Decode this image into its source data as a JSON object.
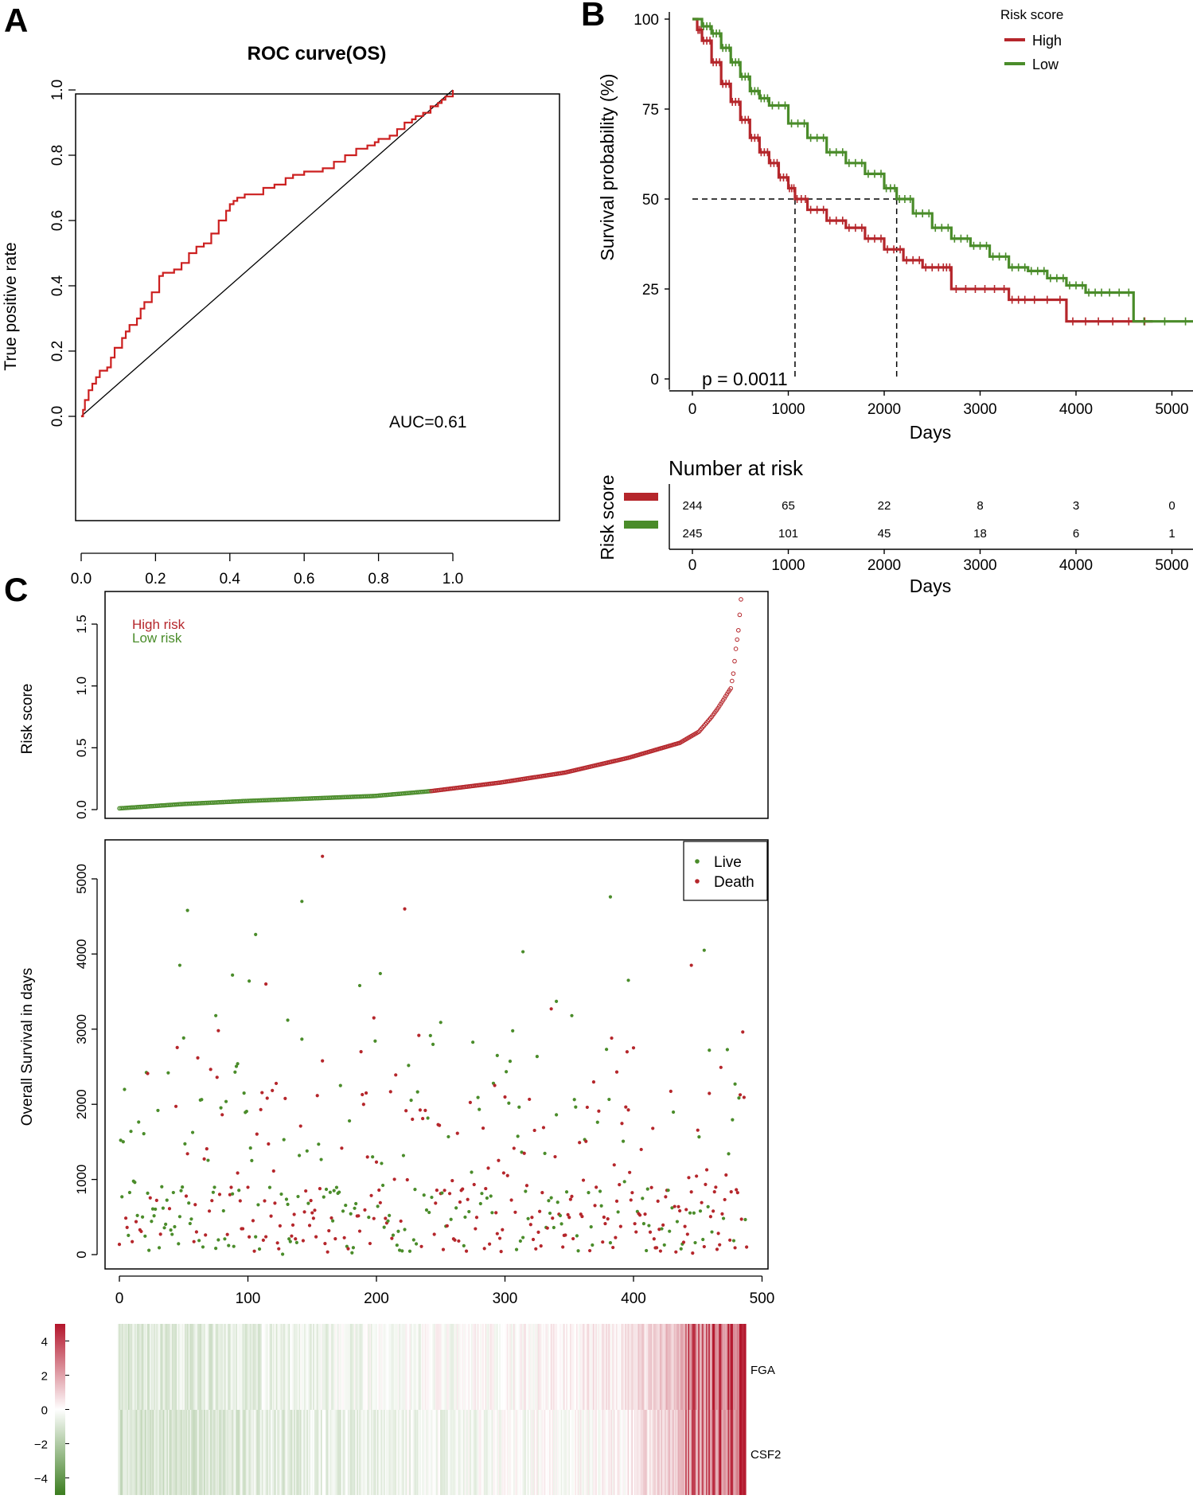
{
  "panel_labels": [
    "A",
    "B",
    "C"
  ],
  "chart_data": [
    {
      "id": "A",
      "type": "line",
      "title": "ROC curve(OS)",
      "xlabel": "",
      "ylabel": "True positive rate",
      "xlim": [
        0,
        1
      ],
      "ylim": [
        0,
        1
      ],
      "xticks": [
        "0.0",
        "0.2",
        "0.4",
        "0.6",
        "0.8",
        "1.0"
      ],
      "yticks": [
        "0.0",
        "0.2",
        "0.4",
        "0.6",
        "0.8",
        "1.0"
      ],
      "annotation": "AUC=0.61",
      "diagonal": true,
      "series": [
        {
          "name": "ROC",
          "color": "#cc1f1f",
          "x": [
            0,
            0.005,
            0.01,
            0.02,
            0.03,
            0.04,
            0.05,
            0.07,
            0.08,
            0.09,
            0.11,
            0.12,
            0.13,
            0.15,
            0.16,
            0.17,
            0.19,
            0.21,
            0.22,
            0.25,
            0.27,
            0.29,
            0.31,
            0.33,
            0.35,
            0.37,
            0.39,
            0.4,
            0.41,
            0.42,
            0.44,
            0.46,
            0.49,
            0.52,
            0.55,
            0.57,
            0.6,
            0.62,
            0.65,
            0.68,
            0.71,
            0.74,
            0.77,
            0.79,
            0.8,
            0.83,
            0.85,
            0.87,
            0.89,
            0.9,
            0.92,
            0.94,
            0.96,
            0.97,
            0.98,
            1.0
          ],
          "y": [
            0,
            0.02,
            0.05,
            0.08,
            0.1,
            0.12,
            0.14,
            0.15,
            0.18,
            0.21,
            0.24,
            0.26,
            0.28,
            0.3,
            0.33,
            0.35,
            0.38,
            0.43,
            0.44,
            0.45,
            0.47,
            0.5,
            0.52,
            0.53,
            0.56,
            0.6,
            0.63,
            0.65,
            0.66,
            0.67,
            0.68,
            0.68,
            0.7,
            0.71,
            0.73,
            0.74,
            0.75,
            0.75,
            0.76,
            0.78,
            0.8,
            0.82,
            0.83,
            0.84,
            0.85,
            0.86,
            0.88,
            0.9,
            0.91,
            0.92,
            0.93,
            0.95,
            0.96,
            0.97,
            0.98,
            1.0
          ]
        }
      ]
    },
    {
      "id": "B",
      "type": "line",
      "title": "",
      "xlabel": "Days",
      "ylabel": "Survival probability (%)",
      "xlim": [
        -200,
        5250
      ],
      "ylim": [
        -3,
        102
      ],
      "xticks": [
        0,
        1000,
        2000,
        3000,
        4000,
        5000
      ],
      "yticks": [
        0,
        25,
        50,
        75,
        100
      ],
      "legend_title": "Risk score",
      "annotation": "p = 0.0011",
      "median_reference": {
        "level": 50,
        "high_days": 1070,
        "low_days": 2130
      },
      "series": [
        {
          "name": "High",
          "color": "#b5262b",
          "x": [
            0,
            50,
            100,
            200,
            300,
            400,
            500,
            600,
            700,
            800,
            900,
            1000,
            1070,
            1200,
            1400,
            1600,
            1800,
            2000,
            2200,
            2400,
            2600,
            2700,
            3000,
            3300,
            3500,
            3900,
            4300,
            4800
          ],
          "y": [
            100,
            97,
            94,
            88,
            82,
            77,
            72,
            67,
            63,
            60,
            56,
            53,
            50,
            47,
            44,
            42,
            39,
            36,
            33,
            31,
            31,
            25,
            25,
            22,
            22,
            16,
            16,
            16
          ]
        },
        {
          "name": "Low",
          "color": "#4a8c2a",
          "x": [
            0,
            100,
            200,
            300,
            400,
            500,
            600,
            700,
            800,
            1000,
            1200,
            1400,
            1600,
            1800,
            2000,
            2130,
            2300,
            2500,
            2700,
            2900,
            3100,
            3300,
            3500,
            3700,
            3900,
            4100,
            4300,
            4600,
            5250
          ],
          "y": [
            100,
            98,
            96,
            92,
            88,
            84,
            80,
            78,
            76,
            71,
            67,
            63,
            60,
            57,
            53,
            50,
            46,
            42,
            39,
            37,
            34,
            31,
            30,
            28,
            26,
            24,
            24,
            16,
            16
          ]
        }
      ]
    },
    {
      "id": "B-risk-table",
      "type": "table",
      "title": "Number at risk",
      "ylabel": "Risk score",
      "xlabel": "Days",
      "xticks": [
        0,
        1000,
        2000,
        3000,
        4000,
        5000
      ],
      "rows": [
        {
          "name": "High",
          "color": "#b5262b",
          "values": [
            244,
            65,
            22,
            8,
            3,
            0
          ]
        },
        {
          "name": "Low",
          "color": "#4a8c2a",
          "values": [
            245,
            101,
            45,
            18,
            6,
            1
          ]
        }
      ]
    },
    {
      "id": "C-risk",
      "type": "scatter",
      "xlabel": "",
      "ylabel": "Risk score",
      "xlim": [
        0,
        489
      ],
      "ylim": [
        0,
        1.7
      ],
      "yticks": [
        "0.0",
        "0.5",
        "1.0",
        "1.5"
      ],
      "n_points": 489,
      "cutoff_index": 245,
      "legend": [
        {
          "name": "High risk",
          "color": "#b5262b"
        },
        {
          "name": "Low risk",
          "color": "#4a8c2a"
        }
      ],
      "curve_x": [
        0,
        50,
        100,
        150,
        200,
        245,
        300,
        350,
        400,
        420,
        440,
        455,
        465,
        470,
        475,
        478,
        480,
        482,
        484,
        486,
        488
      ],
      "curve_y": [
        0.01,
        0.045,
        0.07,
        0.09,
        0.11,
        0.15,
        0.22,
        0.3,
        0.42,
        0.48,
        0.54,
        0.63,
        0.75,
        0.82,
        0.9,
        0.95,
        0.98,
        1.1,
        1.3,
        1.45,
        1.7
      ]
    },
    {
      "id": "C-survival",
      "type": "scatter",
      "xlabel": "",
      "ylabel": "Overall Survival in days",
      "xlim": [
        -15,
        505
      ],
      "ylim": [
        -100,
        5350
      ],
      "xticks": [
        0,
        100,
        200,
        300,
        400,
        500
      ],
      "yticks": [
        0,
        1000,
        2000,
        3000,
        4000,
        5000
      ],
      "legend": [
        {
          "name": "Live",
          "color": "#4a8c2a"
        },
        {
          "name": "Death",
          "color": "#b5262b"
        }
      ],
      "highlight_points": [
        {
          "x": 158,
          "y": 5300,
          "status": "Death"
        },
        {
          "x": 142,
          "y": 4700,
          "status": "Live"
        },
        {
          "x": 222,
          "y": 4600,
          "status": "Death"
        },
        {
          "x": 382,
          "y": 4760,
          "status": "Live"
        },
        {
          "x": 53,
          "y": 4580,
          "status": "Live"
        },
        {
          "x": 106,
          "y": 4260,
          "status": "Live"
        },
        {
          "x": 47,
          "y": 3850,
          "status": "Live"
        },
        {
          "x": 314,
          "y": 4030,
          "status": "Live"
        },
        {
          "x": 455,
          "y": 4050,
          "status": "Live"
        },
        {
          "x": 445,
          "y": 3850,
          "status": "Death"
        },
        {
          "x": 396,
          "y": 3650,
          "status": "Live"
        },
        {
          "x": 88,
          "y": 3720,
          "status": "Live"
        },
        {
          "x": 101,
          "y": 3640,
          "status": "Live"
        },
        {
          "x": 114,
          "y": 3600,
          "status": "Death"
        },
        {
          "x": 187,
          "y": 3580,
          "status": "Live"
        },
        {
          "x": 203,
          "y": 3740,
          "status": "Live"
        },
        {
          "x": 336,
          "y": 3270,
          "status": "Death"
        },
        {
          "x": 340,
          "y": 3370,
          "status": "Live"
        },
        {
          "x": 352,
          "y": 3180,
          "status": "Live"
        },
        {
          "x": 75,
          "y": 3180,
          "status": "Live"
        },
        {
          "x": 77,
          "y": 2980,
          "status": "Death"
        },
        {
          "x": 131,
          "y": 3120,
          "status": "Live"
        },
        {
          "x": 198,
          "y": 3150,
          "status": "Death"
        },
        {
          "x": 250,
          "y": 3090,
          "status": "Live"
        },
        {
          "x": 459,
          "y": 2720,
          "status": "Live"
        },
        {
          "x": 294,
          "y": 2650,
          "status": "Live"
        },
        {
          "x": 92,
          "y": 2540,
          "status": "Live"
        },
        {
          "x": 22,
          "y": 2410,
          "status": "Death"
        },
        {
          "x": 387,
          "y": 2430,
          "status": "Death"
        },
        {
          "x": 479,
          "y": 2270,
          "status": "Live"
        }
      ]
    },
    {
      "id": "C-heatmap",
      "type": "heatmap",
      "genes": [
        "FGA",
        "CSF2"
      ],
      "colorbar_ticks": [
        "4",
        "2",
        "0",
        "−2",
        "−4"
      ],
      "colorbar_range": [
        -5,
        5
      ],
      "low_color": "#3b7d1f",
      "mid_color": "#ffffff",
      "high_color": "#b3152b",
      "n_columns": 489
    }
  ]
}
